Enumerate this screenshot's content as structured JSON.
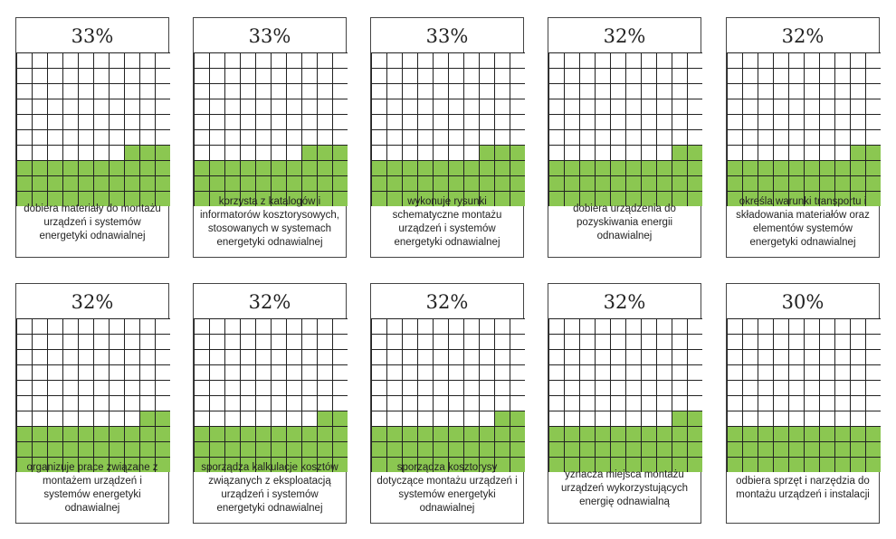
{
  "chart_data": {
    "type": "waffle",
    "colors": {
      "filled": "#8bc751",
      "empty": "#ffffff",
      "grid_line": "#222222"
    },
    "items": [
      {
        "value": 33,
        "value_label": "33%",
        "label": "dobiera materiały do montażu urządzeń i systemów energetyki odnawialnej"
      },
      {
        "value": 33,
        "value_label": "33%",
        "label": "korzysta z katalogów i informatorów kosztorysowych, stosowanych w systemach energetyki odnawialnej"
      },
      {
        "value": 33,
        "value_label": "33%",
        "label": "wykonuje rysunki schematyczne montażu urządzeń i systemów energetyki odnawialnej"
      },
      {
        "value": 32,
        "value_label": "32%",
        "label": "dobiera urządzenia do pozyskiwania energii odnawialnej"
      },
      {
        "value": 32,
        "value_label": "32%",
        "label": "określa warunki transportu i składowania materiałów oraz elementów systemów energetyki odnawialnej"
      },
      {
        "value": 32,
        "value_label": "32%",
        "label": "organizuje prace związane z montażem urządzeń i systemów energetyki odnawialnej"
      },
      {
        "value": 32,
        "value_label": "32%",
        "label": "sporządza kalkulacje kosztów związanych z eksploatacją urządzeń i systemów energetyki odnawialnej"
      },
      {
        "value": 32,
        "value_label": "32%",
        "label": "sporządza kosztorysy dotyczące montażu urządzeń i systemów energetyki odnawialnej"
      },
      {
        "value": 32,
        "value_label": "32%",
        "label": "yznacza miejsca montażu urządzeń wykorzystujących energię odnawialną"
      },
      {
        "value": 30,
        "value_label": "30%",
        "label": "odbiera sprzęt i narzędzia do montażu urządzeń i instalacji"
      }
    ]
  }
}
